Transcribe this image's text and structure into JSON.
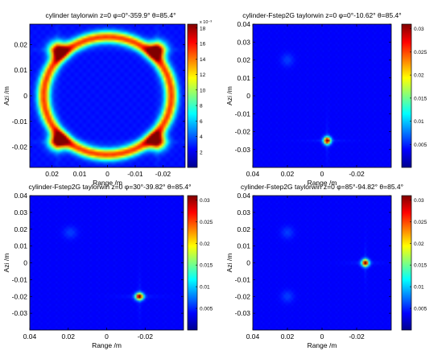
{
  "chart_data": [
    {
      "type": "heatmap",
      "title": "cylinder  taylorwin  z=0  φ=0°-359.9°  θ=85.4°",
      "xlabel": "Range /m",
      "ylabel": "Azi /m",
      "x_ticks": [
        "0.02",
        "0.01",
        "0",
        "-0.01",
        "-0.02"
      ],
      "x_tick_values": [
        0.02,
        0.01,
        0,
        -0.01,
        -0.02
      ],
      "y_ticks": [
        "0.02",
        "0.01",
        "0",
        "-0.01",
        "-0.02"
      ],
      "y_tick_values": [
        0.02,
        0.01,
        0,
        -0.01,
        -0.02
      ],
      "xlim": [
        0.028,
        -0.028
      ],
      "ylim": [
        -0.028,
        0.028
      ],
      "colorbar": {
        "exponent": "x 10⁻³",
        "ticks": [
          "2",
          "4",
          "6",
          "8",
          "10",
          "12",
          "14",
          "16",
          "18"
        ],
        "tick_values": [
          2,
          4,
          6,
          8,
          10,
          12,
          14,
          16,
          18
        ],
        "range": [
          0,
          18.5
        ]
      },
      "features": [
        {
          "shape": "ring",
          "center": [
            0,
            0
          ],
          "radius": 0.023,
          "width": 0.0032,
          "level": 13
        },
        {
          "shape": "spot",
          "x": -0.018,
          "y": 0.018,
          "level": 17
        },
        {
          "shape": "spot",
          "x": 0.018,
          "y": 0.018,
          "level": 16
        },
        {
          "shape": "spot",
          "x": 0.018,
          "y": -0.018,
          "level": 17
        },
        {
          "shape": "spot",
          "x": -0.018,
          "y": -0.018,
          "level": 16
        }
      ],
      "background_level": 1.5
    },
    {
      "type": "heatmap",
      "title": "cylinder-Fstep2G  taylorwin  z=0  φ=0°-10.62°  θ=85.4°",
      "xlabel": "Range /m",
      "ylabel": "Azi /m",
      "x_ticks": [
        "0.04",
        "0.02",
        "0",
        "-0.02"
      ],
      "x_tick_values": [
        0.04,
        0.02,
        0,
        -0.02
      ],
      "y_ticks": [
        "0.04",
        "0.03",
        "0.02",
        "0.01",
        "0",
        "-0.01",
        "-0.02",
        "-0.03"
      ],
      "y_tick_values": [
        0.04,
        0.03,
        0.02,
        0.01,
        0,
        -0.01,
        -0.02,
        -0.03
      ],
      "xlim": [
        0.04,
        -0.04
      ],
      "ylim": [
        -0.04,
        0.04
      ],
      "colorbar": {
        "ticks": [
          "0.005",
          "0.01",
          "0.015",
          "0.02",
          "0.025",
          "0.03"
        ],
        "tick_values": [
          0.005,
          0.01,
          0.015,
          0.02,
          0.025,
          0.03
        ],
        "range": [
          0,
          0.031
        ]
      },
      "features": [
        {
          "shape": "spot",
          "x": -0.003,
          "y": -0.025,
          "level": 0.031
        },
        {
          "shape": "faint",
          "x": 0.02,
          "y": 0.02,
          "level": 0.004
        }
      ],
      "background_level": 0.002
    },
    {
      "type": "heatmap",
      "title": "cylinder-Fstep2G  taylorwin  z=0  φ=30°-39.82°  θ=85.4°",
      "xlabel": "Range /m",
      "ylabel": "Azi /m",
      "x_ticks": [
        "0.04",
        "0.02",
        "0",
        "-0.02"
      ],
      "x_tick_values": [
        0.04,
        0.02,
        0,
        -0.02
      ],
      "y_ticks": [
        "0.04",
        "0.03",
        "0.02",
        "0.01",
        "0",
        "-0.01",
        "-0.02",
        "-0.03"
      ],
      "y_tick_values": [
        0.04,
        0.03,
        0.02,
        0.01,
        0,
        -0.01,
        -0.02,
        -0.03
      ],
      "xlim": [
        0.04,
        -0.04
      ],
      "ylim": [
        -0.04,
        0.04
      ],
      "colorbar": {
        "ticks": [
          "0.005",
          "0.01",
          "0.015",
          "0.02",
          "0.025",
          "0.03"
        ],
        "tick_values": [
          0.005,
          0.01,
          0.015,
          0.02,
          0.025,
          0.03
        ],
        "range": [
          0,
          0.031
        ]
      },
      "features": [
        {
          "shape": "spot",
          "x": -0.017,
          "y": -0.02,
          "level": 0.031
        },
        {
          "shape": "faint",
          "x": 0.019,
          "y": 0.018,
          "level": 0.004
        }
      ],
      "background_level": 0.002
    },
    {
      "type": "heatmap",
      "title": "cylinder-Fstep2G  taylorwin  z=0  φ=85°-94.82°  θ=85.4°",
      "xlabel": "Range /m",
      "ylabel": "Azi /m",
      "x_ticks": [
        "0.04",
        "0.02",
        "0",
        "-0.02"
      ],
      "x_tick_values": [
        0.04,
        0.02,
        0,
        -0.02
      ],
      "y_ticks": [
        "0.04",
        "0.03",
        "0.02",
        "0.01",
        "0",
        "-0.01",
        "-0.02",
        "-0.03"
      ],
      "y_tick_values": [
        0.04,
        0.03,
        0.02,
        0.01,
        0,
        -0.01,
        -0.02,
        -0.03
      ],
      "xlim": [
        0.04,
        -0.04
      ],
      "ylim": [
        -0.04,
        0.04
      ],
      "colorbar": {
        "ticks": [
          "0.005",
          "0.01",
          "0.015",
          "0.02",
          "0.025",
          "0.03"
        ],
        "tick_values": [
          0.005,
          0.01,
          0.015,
          0.02,
          0.025,
          0.03
        ],
        "range": [
          0,
          0.031
        ]
      },
      "features": [
        {
          "shape": "spot",
          "x": -0.025,
          "y": 0.0,
          "level": 0.031
        },
        {
          "shape": "faint",
          "x": 0.02,
          "y": 0.018,
          "level": 0.004
        },
        {
          "shape": "faint",
          "x": 0.02,
          "y": -0.02,
          "level": 0.004
        }
      ],
      "background_level": 0.002
    }
  ]
}
